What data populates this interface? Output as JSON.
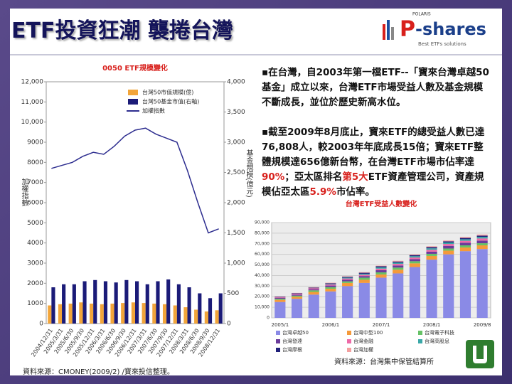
{
  "header": {
    "title": "ETF投資狂潮 襲捲台灣"
  },
  "logo": {
    "brand_top": "POLARIS",
    "letter": "P",
    "word": "-shares",
    "tagline": "Best ETFs solutions"
  },
  "text": {
    "paragraph1": "▪在台灣，自2003年第一檔ETF--「寶來台灣卓越50基金」成立以來，台灣ETF市場受益人數及基金規模不斷成長，並位於歷史新高水位。",
    "paragraph2": [
      "▪截至2009年8月底止，寶來ETF的總受益人數已達76,808人，較2003年年底成長15倍；寶來ETF整體規模達656億新台幣，在台灣ETF市場市佔率達",
      "90%",
      "；亞太區排名",
      "第5大",
      "ETF資產管理公司，資產規模佔亞太區",
      "5.9%",
      "市佔率。"
    ]
  },
  "sources": {
    "left": "資料來源：CMONEY(2009/2) /寶來投信整理。",
    "right": "資料來源：台灣集中保管結算所"
  },
  "chart_data": [
    {
      "type": "bar_line",
      "title": "0050 ETF規模變化",
      "y_label": "加權指數",
      "y2_label": "基金規模(億元)",
      "categories": [
        "2004/12/31",
        "2005/3/31",
        "2005/6/30",
        "2005/9/30",
        "2005/12/31",
        "2006/3/31",
        "2006/6/30",
        "2006/9/30",
        "2006/12/31",
        "2007/3/31",
        "2007/6/30",
        "2007/9/30",
        "2007/12/31",
        "2008/3/31",
        "2008/6/30",
        "2008/9/30",
        "2008/12/31"
      ],
      "series": [
        {
          "name": "台灣50市值規模(億)",
          "color": "#f2a53a",
          "kind": "bar",
          "axis": "y2",
          "values": [
            300,
            320,
            330,
            350,
            330,
            320,
            330,
            340,
            350,
            340,
            330,
            320,
            300,
            270,
            230,
            200,
            220
          ]
        },
        {
          "name": "台灣50基金市值(右軸)",
          "color": "#1b1b78",
          "kind": "bar",
          "axis": "y2",
          "values": [
            600,
            650,
            650,
            700,
            720,
            700,
            680,
            720,
            700,
            650,
            700,
            730,
            650,
            600,
            500,
            420,
            500
          ]
        },
        {
          "name": "加權指數",
          "color": "#2d2d8f",
          "kind": "line",
          "values": [
            7700,
            7850,
            8000,
            8300,
            8500,
            8400,
            8800,
            9300,
            9600,
            9700,
            9400,
            9200,
            9000,
            7600,
            6000,
            4500,
            4700
          ]
        }
      ],
      "ylim": [
        0,
        12000
      ],
      "yticks": [
        0,
        1000,
        2000,
        3000,
        4000,
        5000,
        6000,
        7000,
        8000,
        9000,
        {
          "value": 10000,
          "label": "10,000"
        },
        {
          "value": 11000,
          "label": "11,000"
        },
        {
          "value": 12000,
          "label": "12,000"
        }
      ],
      "y2lim": [
        0,
        4000
      ],
      "y2ticks": [
        0,
        500,
        {
          "value": 1000,
          "label": "1,000"
        },
        {
          "value": 1500,
          "label": "1,500"
        },
        {
          "value": 2000,
          "label": "2,000"
        },
        {
          "value": 2500,
          "label": "2,500"
        },
        {
          "value": 3000,
          "label": "3,000"
        },
        {
          "value": 3500,
          "label": "3,500"
        },
        {
          "value": 4000,
          "label": "4,000"
        }
      ]
    },
    {
      "type": "stacked_bar",
      "title": "台灣ETF受益人數變化",
      "categories": [
        "2005/1",
        null,
        null,
        "2006/1",
        null,
        null,
        "2007/1",
        null,
        null,
        "2008/1",
        null,
        null,
        "2009/8"
      ],
      "series": [
        {
          "name": "台灣卓越50",
          "color": "#8a8ae6",
          "values": [
            15000,
            18000,
            22000,
            25000,
            30000,
            33000,
            38000,
            42000,
            48000,
            55000,
            60000,
            63000,
            65000
          ]
        },
        {
          "name": "台灣中型100",
          "color": "#f59a3a",
          "values": [
            2000,
            2000,
            2500,
            2500,
            3000,
            3000,
            3000,
            3500,
            3500,
            3500,
            3500,
            3500,
            3500
          ]
        },
        {
          "name": "台灣電子科技",
          "color": "#66c266",
          "values": [
            1000,
            1000,
            1500,
            1500,
            1500,
            2000,
            2000,
            2000,
            2000,
            2000,
            2000,
            2000,
            2000
          ]
        },
        {
          "name": "台灣發達",
          "color": "#6a3a9a",
          "values": [
            1000,
            1000,
            1000,
            1500,
            1500,
            1500,
            2000,
            2000,
            2000,
            2000,
            2500,
            2500,
            2500
          ]
        },
        {
          "name": "台灣金融",
          "color": "#ee6aa8",
          "values": [
            500,
            800,
            1000,
            1000,
            1200,
            1200,
            1500,
            1500,
            1500,
            1800,
            1800,
            1800,
            2000
          ]
        },
        {
          "name": "台灣高股息",
          "color": "#3aa8a8",
          "values": [
            0,
            0,
            0,
            500,
            800,
            1000,
            1200,
            1200,
            1300,
            1400,
            1400,
            1500,
            1500
          ]
        },
        {
          "name": "台灣摩根",
          "color": "#20207a",
          "values": [
            500,
            500,
            600,
            700,
            800,
            900,
            1000,
            1000,
            1000,
            1100,
            1100,
            1200,
            1200
          ]
        },
        {
          "name": "台灣加權",
          "color": "#f4a0a0",
          "values": [
            300,
            300,
            400,
            500,
            500,
            600,
            600,
            700,
            700,
            800,
            800,
            900,
            1000
          ]
        }
      ],
      "ylim": [
        0,
        90000
      ],
      "yticks": [
        0,
        {
          "value": 10000,
          "label": "10,000"
        },
        {
          "value": 20000,
          "label": "20,000"
        },
        {
          "value": 30000,
          "label": "30,000"
        },
        {
          "value": 40000,
          "label": "40,000"
        },
        {
          "value": 50000,
          "label": "50,000"
        },
        {
          "value": 60000,
          "label": "60,000"
        },
        {
          "value": 70000,
          "label": "70,000"
        },
        {
          "value": 80000,
          "label": "80,000"
        },
        {
          "value": 90000,
          "label": "90,000"
        }
      ]
    }
  ]
}
